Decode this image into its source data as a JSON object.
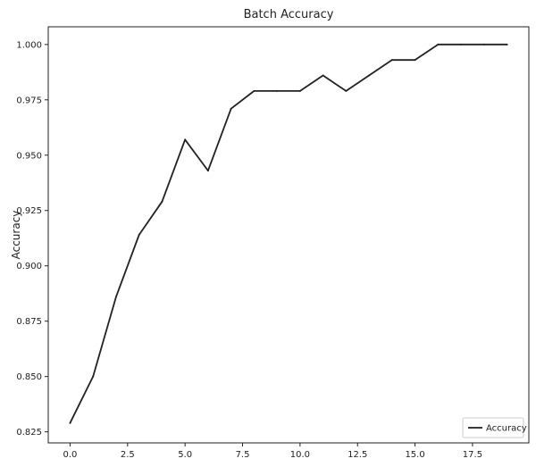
{
  "chart_data": {
    "type": "line",
    "title": "Batch Accuracy",
    "xlabel": "",
    "ylabel": "Accuracy",
    "xlim": [
      -0.95,
      19.95
    ],
    "ylim": [
      0.82,
      1.008
    ],
    "xticks": [
      0.0,
      2.5,
      5.0,
      7.5,
      10.0,
      12.5,
      15.0,
      17.5
    ],
    "xtick_labels": [
      "0.0",
      "2.5",
      "5.0",
      "7.5",
      "10.0",
      "12.5",
      "15.0",
      "17.5"
    ],
    "yticks": [
      0.825,
      0.85,
      0.875,
      0.9,
      0.925,
      0.95,
      0.975,
      1.0
    ],
    "ytick_labels": [
      "0.825",
      "0.850",
      "0.875",
      "0.900",
      "0.925",
      "0.950",
      "0.975",
      "1.000"
    ],
    "legend_position": "bottom-right",
    "grid": false,
    "series": [
      {
        "name": "Accuracy",
        "color": "#222222",
        "x": [
          0,
          1,
          2,
          3,
          4,
          5,
          6,
          7,
          8,
          9,
          10,
          11,
          12,
          13,
          14,
          15,
          16,
          17,
          18,
          19
        ],
        "y": [
          0.829,
          0.85,
          0.886,
          0.914,
          0.929,
          0.957,
          0.943,
          0.971,
          0.979,
          0.979,
          0.979,
          0.986,
          0.979,
          0.986,
          0.993,
          0.993,
          1.0,
          1.0,
          1.0,
          1.0
        ]
      }
    ]
  }
}
